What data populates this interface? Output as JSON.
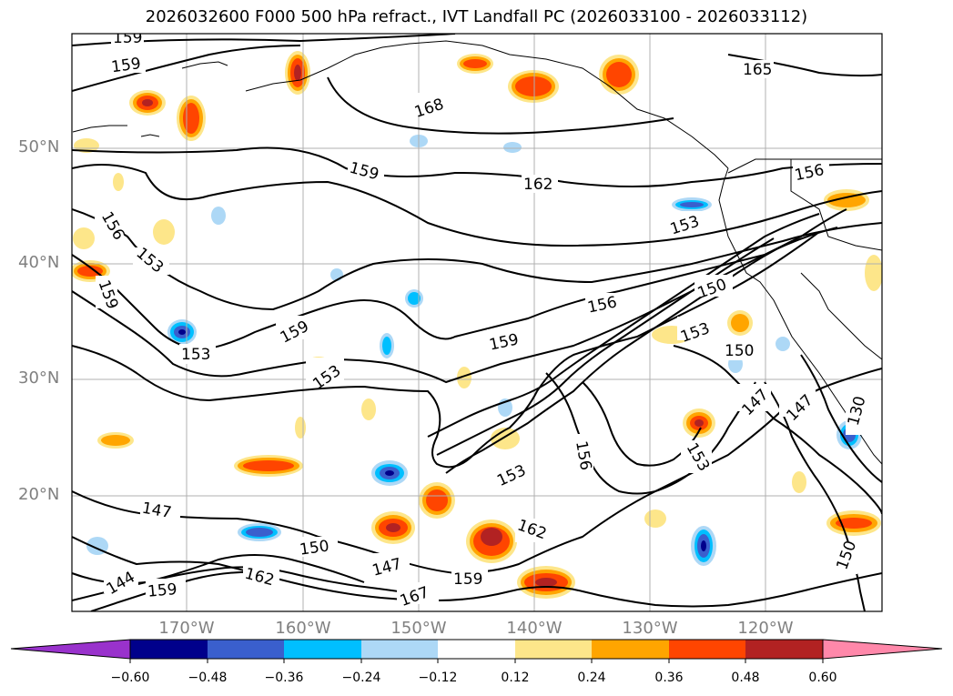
{
  "title": "2026032600 F000 500 hPa refract., IVT Landfall PC (2026033100 - 2026033112)",
  "lat_labels": [
    "50°N",
    "40°N",
    "30°N",
    "20°N"
  ],
  "lon_labels": [
    "170°W",
    "160°W",
    "150°W",
    "140°W",
    "130°W",
    "120°W"
  ],
  "colorbar": {
    "ticks": [
      "−0.60",
      "−0.48",
      "−0.36",
      "−0.24",
      "−0.12",
      "0.12",
      "0.24",
      "0.36",
      "0.48",
      "0.60"
    ],
    "colors": [
      "#9932cc",
      "#00008b",
      "#3a5fcd",
      "#00bfff",
      "#add8f6",
      "#ffffff",
      "#fde68a",
      "#ffa500",
      "#ff4500",
      "#b22222",
      "#ff88aa"
    ]
  },
  "contour_labels": [
    "159",
    "159",
    "168",
    "165",
    "159",
    "162",
    "156",
    "156",
    "153",
    "153",
    "159",
    "153",
    "159",
    "153",
    "156",
    "150",
    "153",
    "150",
    "159",
    "147",
    "147",
    "130",
    "153",
    "153",
    "156",
    "162",
    "147",
    "150",
    "147",
    "167",
    "162",
    "159",
    "150",
    "144",
    "159"
  ]
}
